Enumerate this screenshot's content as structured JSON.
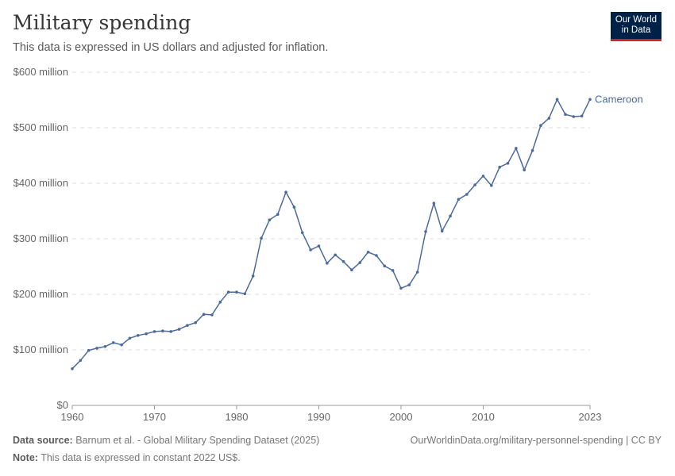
{
  "header": {
    "title": "Military spending",
    "subtitle": "This data is expressed in US dollars and adjusted for inflation.",
    "logo": "Our World in Data"
  },
  "footer": {
    "source_label": "Data source:",
    "source": "Barnum et al. - Global Military Spending Dataset (2025)",
    "url": "OurWorldinData.org/military-personnel-spending | CC BY",
    "note_label": "Note:",
    "note": "This data is expressed in constant 2022 US$."
  },
  "colors": {
    "series": "#4c6a9c",
    "grid": "#dddddd",
    "axis": "#999999"
  },
  "chart_data": {
    "type": "line",
    "title": "Military spending",
    "xlim": [
      1960,
      2023
    ],
    "ylim": [
      0,
      600
    ],
    "grid": "horizontal-dashed",
    "x_ticks": [
      1960,
      1970,
      1980,
      1990,
      2000,
      2010,
      2023
    ],
    "y_ticks": [
      {
        "v": 0,
        "label": "$0"
      },
      {
        "v": 100,
        "label": "$100 million"
      },
      {
        "v": 200,
        "label": "$200 million"
      },
      {
        "v": 300,
        "label": "$300 million"
      },
      {
        "v": 400,
        "label": "$400 million"
      },
      {
        "v": 500,
        "label": "$500 million"
      },
      {
        "v": 600,
        "label": "$600 million"
      }
    ],
    "series": [
      {
        "name": "Cameroon",
        "x_start": 1960,
        "values": [
          66,
          81,
          99,
          103,
          106,
          113,
          109,
          121,
          126,
          129,
          133,
          134,
          133,
          137,
          144,
          149,
          164,
          163,
          186,
          204,
          204,
          201,
          233,
          301,
          334,
          344,
          384,
          357,
          311,
          280,
          287,
          256,
          271,
          259,
          244,
          257,
          276,
          270,
          251,
          243,
          211,
          217,
          240,
          313,
          364,
          314,
          341,
          371,
          380,
          397,
          413,
          396,
          429,
          436,
          463,
          424,
          459,
          504,
          517,
          551,
          524,
          520,
          521,
          551
        ]
      }
    ]
  }
}
